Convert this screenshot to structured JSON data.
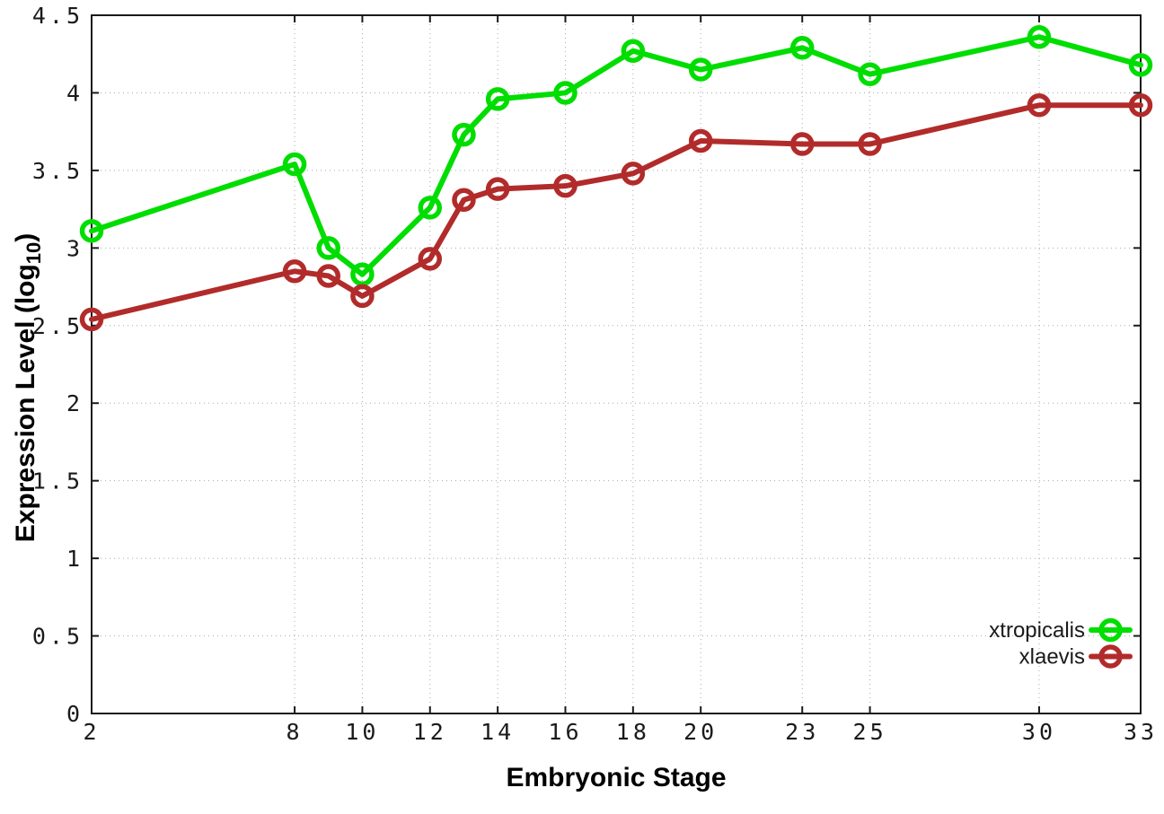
{
  "chart_data": {
    "type": "line",
    "title": "",
    "xlabel": "Embryonic Stage",
    "ylabel": "Expression Level (log10)",
    "ylabel_parts": {
      "pre": "Expression Level (log",
      "sub": "10",
      "post": ")"
    },
    "x": [
      2,
      8,
      9,
      10,
      12,
      13,
      14,
      16,
      18,
      20,
      23,
      25,
      30,
      33
    ],
    "x_ticks": [
      2,
      8,
      10,
      12,
      14,
      16,
      18,
      20,
      23,
      25,
      30,
      33
    ],
    "x_tick_labels": [
      "2",
      "8",
      "10",
      "12",
      "14",
      "16",
      "18",
      "20",
      "23",
      "25",
      "30",
      "33"
    ],
    "y_ticks": [
      0,
      0.5,
      1,
      1.5,
      2,
      2.5,
      3,
      3.5,
      4,
      4.5
    ],
    "y_tick_labels": [
      "0",
      "0.5",
      "1",
      "1.5",
      "2",
      "2.5",
      "3",
      "3.5",
      "4",
      "4.5"
    ],
    "xlim": [
      2,
      33
    ],
    "ylim": [
      0,
      4.5
    ],
    "grid": true,
    "legend_position": "bottom-right",
    "series": [
      {
        "name": "xtropicalis",
        "color": "#00DD00",
        "values": [
          3.11,
          3.54,
          3.0,
          2.83,
          3.26,
          3.73,
          3.96,
          4.0,
          4.27,
          4.15,
          4.29,
          4.12,
          4.36,
          4.18
        ]
      },
      {
        "name": "xlaevis",
        "color": "#B22B2B",
        "values": [
          2.54,
          2.85,
          2.82,
          2.69,
          2.93,
          3.31,
          3.38,
          3.4,
          3.48,
          3.69,
          3.67,
          3.67,
          3.92,
          3.92
        ]
      }
    ],
    "colors": {
      "border": "#1a1a1a",
      "grid": "#aaaaaa",
      "text": "#1a1a1a"
    }
  }
}
